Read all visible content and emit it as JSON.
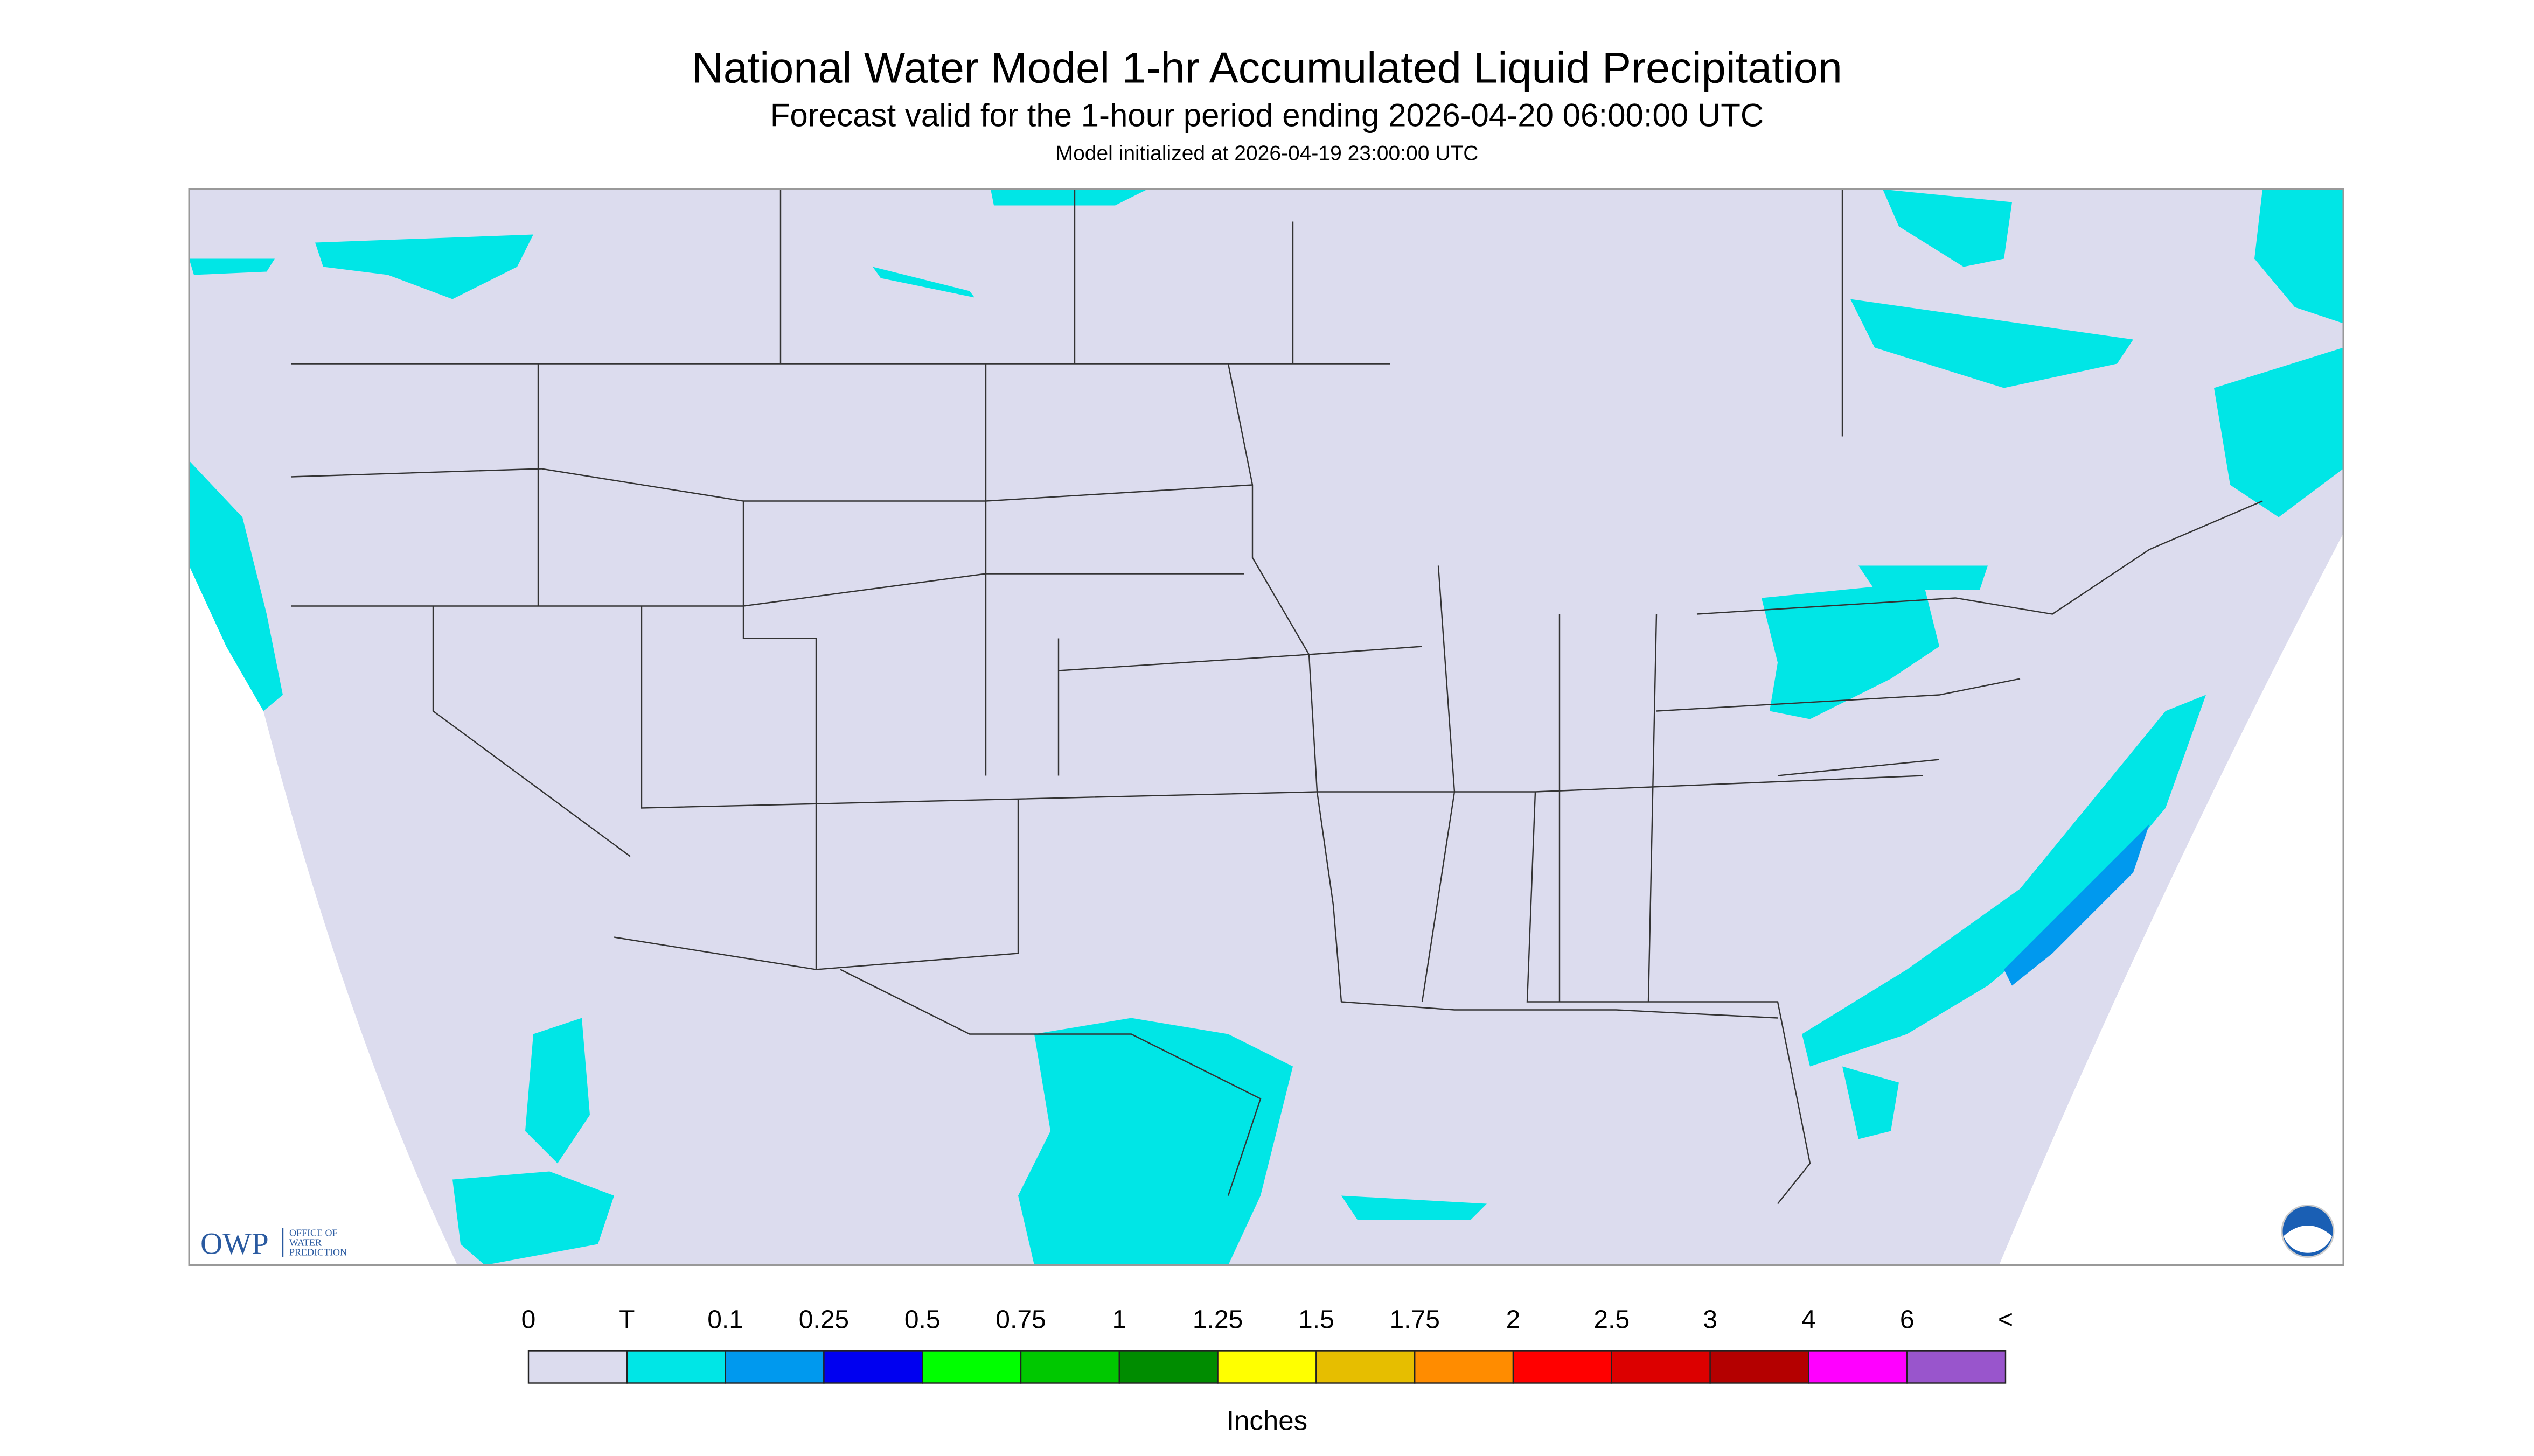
{
  "header": {
    "title": "National Water Model 1-hr Accumulated Liquid Precipitation",
    "subtitle": "Forecast valid for the 1-hour period ending 2026-04-20 06:00:00 UTC",
    "note": "Model initialized at 2026-04-19 23:00:00 UTC"
  },
  "logo": {
    "name": "OWP",
    "lines": [
      "OFFICE OF",
      "WATER",
      "PREDICTION"
    ]
  },
  "legend": {
    "labels": [
      "0",
      "T",
      "0.1",
      "0.25",
      "0.5",
      "0.75",
      "1",
      "1.25",
      "1.5",
      "1.75",
      "2",
      "2.5",
      "3",
      "4",
      "6",
      "<"
    ],
    "colors": [
      "#dcdcee",
      "#00e6e6",
      "#0099ee",
      "#0000f0",
      "#00ff00",
      "#00c800",
      "#008c00",
      "#ffff00",
      "#e6be00",
      "#ff8c00",
      "#ff0000",
      "#dc0000",
      "#b40000",
      "#ff00ff",
      "#9955cc"
    ],
    "units": "Inches"
  }
}
